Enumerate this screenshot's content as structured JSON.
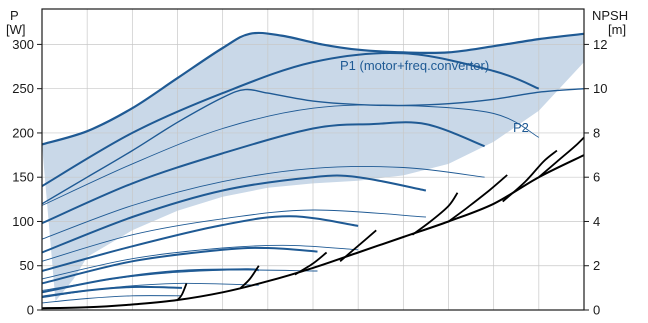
{
  "colors": {
    "curve_blue": "#1f5a94",
    "npsh_black": "#000000",
    "band_fill": "#c9d8e8",
    "grid": "#c8c8c8",
    "frame": "#1a1a1a"
  },
  "chart_data": {
    "type": "line",
    "grid": true,
    "left_axis": {
      "label_line1": "P",
      "label_line2": "[W]",
      "ylim": [
        0,
        340
      ],
      "ticks": [
        0,
        50,
        100,
        150,
        200,
        250,
        300
      ]
    },
    "right_axis": {
      "label_line1": "NPSH",
      "label_line2": "[m]",
      "ylim": [
        0,
        13.6
      ],
      "ticks": [
        0,
        2,
        4,
        6,
        8,
        10,
        12
      ]
    },
    "xlim": [
      0,
      12
    ],
    "vertical_grid_lines": 12,
    "p1_label": "P1 (motor+freq.converter)",
    "p2_label": "P2",
    "envelope_top": [
      [
        0,
        187
      ],
      [
        1,
        202
      ],
      [
        2,
        228
      ],
      [
        3,
        262
      ],
      [
        4,
        296
      ],
      [
        4.6,
        312
      ],
      [
        5.3,
        310
      ],
      [
        6.2,
        300
      ],
      [
        7,
        294
      ],
      [
        8,
        291
      ],
      [
        9,
        291
      ],
      [
        10,
        298
      ],
      [
        11,
        306
      ],
      [
        12,
        312
      ]
    ],
    "envelope_bottom": [
      [
        0.3,
        10
      ],
      [
        0.7,
        35
      ],
      [
        1,
        60
      ],
      [
        2,
        90
      ],
      [
        3,
        112
      ],
      [
        4,
        128
      ],
      [
        5,
        138
      ],
      [
        6,
        143
      ],
      [
        7,
        146
      ],
      [
        8,
        152
      ],
      [
        9,
        165
      ],
      [
        10,
        190
      ],
      [
        11,
        225
      ],
      [
        12,
        280
      ]
    ],
    "p1_max_curve": [
      [
        0,
        187
      ],
      [
        1,
        202
      ],
      [
        2,
        228
      ],
      [
        3,
        262
      ],
      [
        4,
        296
      ],
      [
        4.6,
        312
      ],
      [
        5.3,
        310
      ],
      [
        6.2,
        300
      ],
      [
        7,
        294
      ],
      [
        8,
        291
      ],
      [
        9,
        291
      ],
      [
        10,
        298
      ],
      [
        11,
        306
      ],
      [
        12,
        312
      ]
    ],
    "p1_curves": [
      [
        [
          0,
          140
        ],
        [
          2,
          200
        ],
        [
          4,
          245
        ],
        [
          6,
          280
        ],
        [
          8,
          290
        ],
        [
          10,
          270
        ],
        [
          11,
          250
        ]
      ],
      [
        [
          0,
          98
        ],
        [
          2,
          143
        ],
        [
          4,
          177
        ],
        [
          6,
          205
        ],
        [
          7.3,
          210
        ],
        [
          8.5,
          210
        ],
        [
          9.8,
          185
        ]
      ],
      [
        [
          0,
          65
        ],
        [
          2,
          105
        ],
        [
          4,
          135
        ],
        [
          6,
          150
        ],
        [
          7,
          150
        ],
        [
          8.5,
          135
        ]
      ],
      [
        [
          0,
          44
        ],
        [
          2,
          72
        ],
        [
          4,
          96
        ],
        [
          5.5,
          106
        ],
        [
          7,
          95
        ]
      ],
      [
        [
          0,
          30
        ],
        [
          2,
          55
        ],
        [
          4,
          68
        ],
        [
          5,
          70
        ],
        [
          6.1,
          66
        ]
      ],
      [
        [
          0,
          20
        ],
        [
          1.5,
          35
        ],
        [
          3,
          44
        ],
        [
          4.5,
          46
        ],
        [
          4.8,
          45
        ]
      ],
      [
        [
          0,
          15
        ],
        [
          1,
          22
        ],
        [
          2,
          26
        ],
        [
          3.1,
          25
        ]
      ]
    ],
    "p2_max_curve": [
      [
        0,
        120
      ],
      [
        1,
        150
      ],
      [
        2,
        180
      ],
      [
        3,
        212
      ],
      [
        4,
        240
      ],
      [
        4.5,
        249
      ],
      [
        5,
        245
      ],
      [
        6,
        236
      ],
      [
        7,
        232
      ],
      [
        8,
        231
      ],
      [
        9,
        233
      ],
      [
        10,
        238
      ],
      [
        11,
        246
      ],
      [
        12,
        250
      ]
    ],
    "p2_curves": [
      [
        [
          0,
          118
        ],
        [
          2,
          165
        ],
        [
          4,
          205
        ],
        [
          6,
          228
        ],
        [
          8,
          231
        ],
        [
          10,
          222
        ],
        [
          11,
          195
        ]
      ],
      [
        [
          0,
          80
        ],
        [
          2,
          118
        ],
        [
          4,
          145
        ],
        [
          6,
          160
        ],
        [
          8,
          161
        ],
        [
          9.8,
          150
        ]
      ],
      [
        [
          0,
          55
        ],
        [
          2,
          85
        ],
        [
          4,
          103
        ],
        [
          6,
          113
        ],
        [
          8.5,
          105
        ]
      ],
      [
        [
          0,
          35
        ],
        [
          2,
          58
        ],
        [
          4,
          70
        ],
        [
          5.5,
          73
        ],
        [
          7,
          68
        ]
      ],
      [
        [
          0,
          22
        ],
        [
          2,
          38
        ],
        [
          4,
          45
        ],
        [
          6.1,
          44
        ]
      ],
      [
        [
          0,
          14
        ],
        [
          1.5,
          25
        ],
        [
          3,
          30
        ],
        [
          4.8,
          28
        ]
      ],
      [
        [
          0,
          8
        ],
        [
          1,
          13
        ],
        [
          2,
          16
        ],
        [
          3.1,
          16
        ]
      ]
    ],
    "npsh_base": [
      [
        0,
        0.08
      ],
      [
        1,
        0.12
      ],
      [
        2,
        0.25
      ],
      [
        3,
        0.45
      ],
      [
        4,
        0.8
      ],
      [
        5,
        1.3
      ],
      [
        6,
        1.9
      ],
      [
        7,
        2.6
      ],
      [
        8,
        3.3
      ],
      [
        9,
        4.0
      ],
      [
        10,
        4.8
      ],
      [
        11,
        6.0
      ],
      [
        12,
        7.0
      ]
    ],
    "npsh_branches": [
      [
        [
          3.0,
          0.45
        ],
        [
          3.1,
          0.7
        ],
        [
          3.2,
          1.2
        ]
      ],
      [
        [
          4.4,
          1.0
        ],
        [
          4.6,
          1.4
        ],
        [
          4.8,
          2.0
        ]
      ],
      [
        [
          5.6,
          1.6
        ],
        [
          6.0,
          2.1
        ],
        [
          6.3,
          2.6
        ]
      ],
      [
        [
          6.6,
          2.2
        ],
        [
          7.0,
          2.9
        ],
        [
          7.4,
          3.6
        ]
      ],
      [
        [
          8.2,
          3.4
        ],
        [
          8.6,
          4.0
        ],
        [
          9.0,
          4.7
        ],
        [
          9.2,
          5.3
        ]
      ],
      [
        [
          9.0,
          4.0
        ],
        [
          9.4,
          4.6
        ],
        [
          9.9,
          5.4
        ],
        [
          10.3,
          6.1
        ]
      ],
      [
        [
          10.2,
          4.9
        ],
        [
          10.7,
          5.8
        ],
        [
          11.1,
          6.7
        ],
        [
          11.4,
          7.2
        ]
      ],
      [
        [
          11.0,
          6.0
        ],
        [
          11.4,
          6.7
        ],
        [
          11.8,
          7.4
        ],
        [
          12.0,
          7.8
        ]
      ]
    ]
  }
}
